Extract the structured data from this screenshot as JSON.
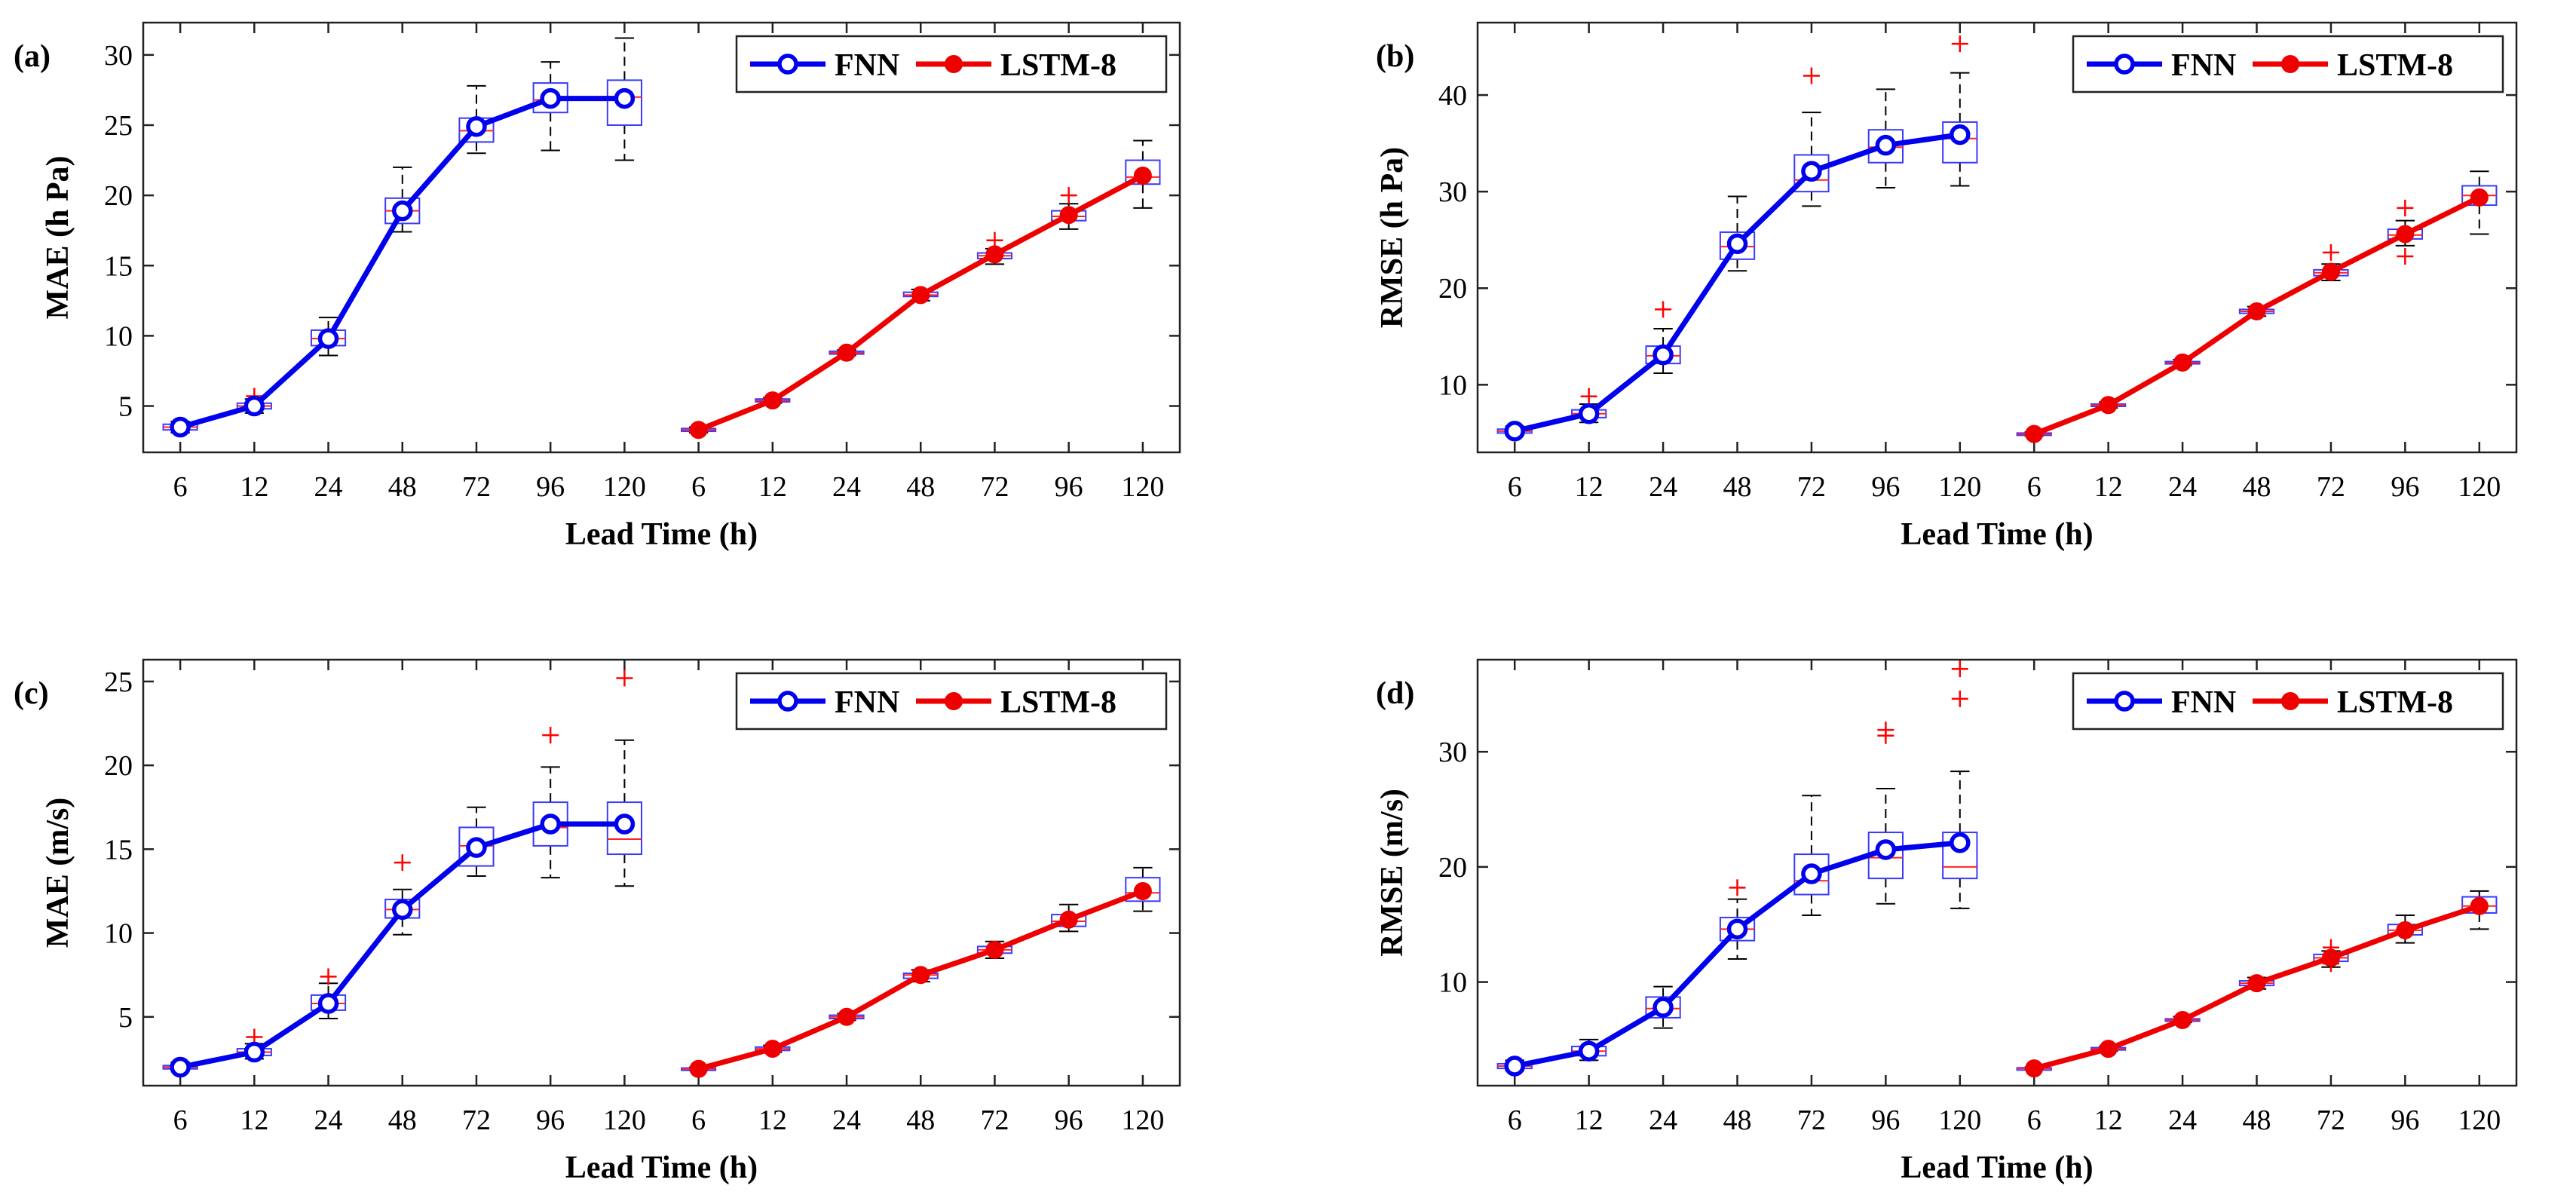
{
  "colors": {
    "fnn": "#0000ee",
    "lstm": "#ee0000",
    "box": "#3a3aff",
    "median": "#ff2222",
    "whisker": "#000000",
    "outlier": "#ff0000"
  },
  "chart_data": [
    {
      "type": "line+box",
      "panel": "(a)",
      "xlabel": "Lead Time (h)",
      "ylabel": "MAE (h Pa)",
      "ylim": [
        1.7,
        32.3
      ],
      "yticks": [
        5,
        10,
        15,
        20,
        25,
        30
      ],
      "categories": [
        "6",
        "12",
        "24",
        "48",
        "72",
        "96",
        "120",
        "6",
        "12",
        "24",
        "48",
        "72",
        "96",
        "120"
      ],
      "legend": [
        "FNN",
        "LSTM-8"
      ],
      "legend_position": "top-right",
      "series": [
        {
          "name": "FNN",
          "x": [
            1,
            2,
            3,
            4,
            5,
            6,
            7
          ],
          "values": [
            3.5,
            5.0,
            9.8,
            18.9,
            24.9,
            26.9,
            26.9
          ]
        },
        {
          "name": "LSTM-8",
          "x": [
            8,
            9,
            10,
            11,
            12,
            13,
            14
          ],
          "values": [
            3.3,
            5.4,
            8.8,
            12.9,
            15.8,
            18.6,
            21.4
          ]
        }
      ],
      "boxes": [
        {
          "x": 1,
          "q1": 3.3,
          "median": 3.5,
          "q3": 3.7,
          "low": 3.1,
          "high": 3.9,
          "outliers": []
        },
        {
          "x": 2,
          "q1": 4.8,
          "median": 5.0,
          "q3": 5.2,
          "low": 4.5,
          "high": 5.5,
          "outliers": [
            5.7
          ]
        },
        {
          "x": 3,
          "q1": 9.3,
          "median": 9.8,
          "q3": 10.4,
          "low": 8.6,
          "high": 11.3,
          "outliers": []
        },
        {
          "x": 4,
          "q1": 18.0,
          "median": 18.9,
          "q3": 19.8,
          "low": 17.4,
          "high": 22.0,
          "outliers": []
        },
        {
          "x": 5,
          "q1": 23.8,
          "median": 24.6,
          "q3": 25.5,
          "low": 23.0,
          "high": 27.8,
          "outliers": []
        },
        {
          "x": 6,
          "q1": 25.9,
          "median": 26.8,
          "q3": 28.0,
          "low": 23.2,
          "high": 29.5,
          "outliers": []
        },
        {
          "x": 7,
          "q1": 25.0,
          "median": 27.0,
          "q3": 28.2,
          "low": 22.5,
          "high": 31.2,
          "outliers": []
        },
        {
          "x": 8,
          "q1": 3.2,
          "median": 3.3,
          "q3": 3.4,
          "low": 3.1,
          "high": 3.5,
          "outliers": []
        },
        {
          "x": 9,
          "q1": 5.3,
          "median": 5.4,
          "q3": 5.5,
          "low": 5.2,
          "high": 5.6,
          "outliers": []
        },
        {
          "x": 10,
          "q1": 8.7,
          "median": 8.8,
          "q3": 8.9,
          "low": 8.6,
          "high": 9.0,
          "outliers": []
        },
        {
          "x": 11,
          "q1": 12.8,
          "median": 12.9,
          "q3": 13.1,
          "low": 12.5,
          "high": 13.3,
          "outliers": []
        },
        {
          "x": 12,
          "q1": 15.5,
          "median": 15.7,
          "q3": 15.9,
          "low": 15.1,
          "high": 16.2,
          "outliers": [
            16.8
          ]
        },
        {
          "x": 13,
          "q1": 18.2,
          "median": 18.5,
          "q3": 18.9,
          "low": 17.6,
          "high": 19.4,
          "outliers": [
            20.0
          ]
        },
        {
          "x": 14,
          "q1": 20.8,
          "median": 21.3,
          "q3": 22.5,
          "low": 19.1,
          "high": 23.9,
          "outliers": []
        }
      ]
    },
    {
      "type": "line+box",
      "panel": "(b)",
      "xlabel": "Lead Time (h)",
      "ylabel": "RMSE (h Pa)",
      "ylim": [
        3.0,
        47.5
      ],
      "yticks": [
        10,
        20,
        30,
        40
      ],
      "categories": [
        "6",
        "12",
        "24",
        "48",
        "72",
        "96",
        "120",
        "6",
        "12",
        "24",
        "48",
        "72",
        "96",
        "120"
      ],
      "legend": [
        "FNN",
        "LSTM-8"
      ],
      "legend_position": "top-right",
      "series": [
        {
          "name": "FNN",
          "x": [
            1,
            2,
            3,
            4,
            5,
            6,
            7
          ],
          "values": [
            5.2,
            7.0,
            13.1,
            24.6,
            32.1,
            34.8,
            35.9
          ]
        },
        {
          "name": "LSTM-8",
          "x": [
            8,
            9,
            10,
            11,
            12,
            13,
            14
          ],
          "values": [
            4.9,
            7.9,
            12.3,
            17.6,
            21.7,
            25.6,
            29.4
          ]
        }
      ],
      "boxes": [
        {
          "x": 1,
          "q1": 5.0,
          "median": 5.2,
          "q3": 5.4,
          "low": 4.8,
          "high": 5.7,
          "outliers": []
        },
        {
          "x": 2,
          "q1": 6.6,
          "median": 7.0,
          "q3": 7.4,
          "low": 6.1,
          "high": 8.0,
          "outliers": [
            8.8
          ]
        },
        {
          "x": 3,
          "q1": 12.2,
          "median": 13.0,
          "q3": 14.0,
          "low": 11.2,
          "high": 15.8,
          "outliers": [
            17.8
          ]
        },
        {
          "x": 4,
          "q1": 23.0,
          "median": 24.3,
          "q3": 25.8,
          "low": 21.8,
          "high": 29.5,
          "outliers": []
        },
        {
          "x": 5,
          "q1": 30.0,
          "median": 31.2,
          "q3": 33.8,
          "low": 28.5,
          "high": 38.2,
          "outliers": [
            42.0
          ]
        },
        {
          "x": 6,
          "q1": 33.0,
          "median": 34.6,
          "q3": 36.4,
          "low": 30.4,
          "high": 40.6,
          "outliers": []
        },
        {
          "x": 7,
          "q1": 33.0,
          "median": 35.5,
          "q3": 37.2,
          "low": 30.6,
          "high": 42.3,
          "outliers": [
            45.3
          ]
        },
        {
          "x": 8,
          "q1": 4.8,
          "median": 4.9,
          "q3": 5.0,
          "low": 4.7,
          "high": 5.1,
          "outliers": []
        },
        {
          "x": 9,
          "q1": 7.8,
          "median": 7.9,
          "q3": 8.0,
          "low": 7.6,
          "high": 8.2,
          "outliers": []
        },
        {
          "x": 10,
          "q1": 12.2,
          "median": 12.3,
          "q3": 12.4,
          "low": 12.0,
          "high": 12.6,
          "outliers": []
        },
        {
          "x": 11,
          "q1": 17.4,
          "median": 17.6,
          "q3": 17.8,
          "low": 17.1,
          "high": 18.1,
          "outliers": []
        },
        {
          "x": 12,
          "q1": 21.3,
          "median": 21.6,
          "q3": 21.9,
          "low": 20.8,
          "high": 22.5,
          "outliers": [
            23.7
          ]
        },
        {
          "x": 13,
          "q1": 25.1,
          "median": 25.5,
          "q3": 26.1,
          "low": 24.4,
          "high": 27.0,
          "outliers": [
            23.3,
            28.3
          ]
        },
        {
          "x": 14,
          "q1": 28.6,
          "median": 29.6,
          "q3": 30.6,
          "low": 25.6,
          "high": 32.1,
          "outliers": []
        }
      ]
    },
    {
      "type": "line+box",
      "panel": "(c)",
      "xlabel": "Lead Time (h)",
      "ylabel": "MAE (m/s)",
      "ylim": [
        0.9,
        26.3
      ],
      "yticks": [
        5,
        10,
        15,
        20,
        25
      ],
      "categories": [
        "6",
        "12",
        "24",
        "48",
        "72",
        "96",
        "120",
        "6",
        "12",
        "24",
        "48",
        "72",
        "96",
        "120"
      ],
      "legend": [
        "FNN",
        "LSTM-8"
      ],
      "legend_position": "top-right",
      "series": [
        {
          "name": "FNN",
          "x": [
            1,
            2,
            3,
            4,
            5,
            6,
            7
          ],
          "values": [
            2.0,
            2.9,
            5.8,
            11.4,
            15.1,
            16.5,
            16.5
          ]
        },
        {
          "name": "LSTM-8",
          "x": [
            8,
            9,
            10,
            11,
            12,
            13,
            14
          ],
          "values": [
            1.9,
            3.1,
            5.0,
            7.5,
            9.0,
            10.8,
            12.5
          ]
        }
      ],
      "boxes": [
        {
          "x": 1,
          "q1": 1.9,
          "median": 2.0,
          "q3": 2.1,
          "low": 1.8,
          "high": 2.3,
          "outliers": []
        },
        {
          "x": 2,
          "q1": 2.7,
          "median": 2.9,
          "q3": 3.1,
          "low": 2.5,
          "high": 3.4,
          "outliers": [
            3.8
          ]
        },
        {
          "x": 3,
          "q1": 5.4,
          "median": 5.8,
          "q3": 6.3,
          "low": 4.9,
          "high": 7.0,
          "outliers": [
            7.4
          ]
        },
        {
          "x": 4,
          "q1": 10.9,
          "median": 11.4,
          "q3": 12.0,
          "low": 9.9,
          "high": 12.6,
          "outliers": [
            14.2
          ]
        },
        {
          "x": 5,
          "q1": 14.0,
          "median": 15.2,
          "q3": 16.3,
          "low": 13.4,
          "high": 17.5,
          "outliers": []
        },
        {
          "x": 6,
          "q1": 15.2,
          "median": 16.3,
          "q3": 17.8,
          "low": 13.3,
          "high": 19.9,
          "outliers": [
            21.8
          ]
        },
        {
          "x": 7,
          "q1": 14.7,
          "median": 15.6,
          "q3": 17.8,
          "low": 12.8,
          "high": 21.5,
          "outliers": [
            25.2
          ]
        },
        {
          "x": 8,
          "q1": 1.85,
          "median": 1.9,
          "q3": 1.95,
          "low": 1.8,
          "high": 2.0,
          "outliers": []
        },
        {
          "x": 9,
          "q1": 3.0,
          "median": 3.1,
          "q3": 3.2,
          "low": 2.9,
          "high": 3.3,
          "outliers": []
        },
        {
          "x": 10,
          "q1": 4.9,
          "median": 5.0,
          "q3": 5.1,
          "low": 4.8,
          "high": 5.2,
          "outliers": []
        },
        {
          "x": 11,
          "q1": 7.3,
          "median": 7.5,
          "q3": 7.6,
          "low": 7.1,
          "high": 7.8,
          "outliers": []
        },
        {
          "x": 12,
          "q1": 8.8,
          "median": 9.0,
          "q3": 9.2,
          "low": 8.5,
          "high": 9.5,
          "outliers": []
        },
        {
          "x": 13,
          "q1": 10.4,
          "median": 10.7,
          "q3": 11.1,
          "low": 10.1,
          "high": 11.7,
          "outliers": []
        },
        {
          "x": 14,
          "q1": 11.9,
          "median": 12.4,
          "q3": 13.3,
          "low": 11.3,
          "high": 13.9,
          "outliers": []
        }
      ]
    },
    {
      "type": "line+box",
      "panel": "(d)",
      "xlabel": "Lead Time (h)",
      "ylabel": "RMSE (m/s)",
      "ylim": [
        1.0,
        38.0
      ],
      "yticks": [
        10,
        20,
        30
      ],
      "categories": [
        "6",
        "12",
        "24",
        "48",
        "72",
        "96",
        "120",
        "6",
        "12",
        "24",
        "48",
        "72",
        "96",
        "120"
      ],
      "legend": [
        "FNN",
        "LSTM-8"
      ],
      "legend_position": "top-right",
      "series": [
        {
          "name": "FNN",
          "x": [
            1,
            2,
            3,
            4,
            5,
            6,
            7
          ],
          "values": [
            2.7,
            4.0,
            7.8,
            14.6,
            19.4,
            21.5,
            22.1
          ]
        },
        {
          "name": "LSTM-8",
          "x": [
            8,
            9,
            10,
            11,
            12,
            13,
            14
          ],
          "values": [
            2.5,
            4.2,
            6.7,
            9.9,
            12.1,
            14.5,
            16.6
          ]
        }
      ],
      "boxes": [
        {
          "x": 1,
          "q1": 2.5,
          "median": 2.7,
          "q3": 2.9,
          "low": 2.3,
          "high": 3.2,
          "outliers": []
        },
        {
          "x": 2,
          "q1": 3.6,
          "median": 4.0,
          "q3": 4.4,
          "low": 3.2,
          "high": 5.0,
          "outliers": []
        },
        {
          "x": 3,
          "q1": 6.9,
          "median": 7.7,
          "q3": 8.7,
          "low": 6.0,
          "high": 9.6,
          "outliers": []
        },
        {
          "x": 4,
          "q1": 13.6,
          "median": 14.6,
          "q3": 15.6,
          "low": 12.0,
          "high": 17.2,
          "outliers": [
            18.2
          ]
        },
        {
          "x": 5,
          "q1": 17.6,
          "median": 18.8,
          "q3": 21.1,
          "low": 15.8,
          "high": 26.2,
          "outliers": []
        },
        {
          "x": 6,
          "q1": 19.0,
          "median": 20.8,
          "q3": 23.0,
          "low": 16.8,
          "high": 26.8,
          "outliers": [
            31.4,
            31.9
          ]
        },
        {
          "x": 7,
          "q1": 19.0,
          "median": 20.0,
          "q3": 23.0,
          "low": 16.4,
          "high": 28.3,
          "outliers": [
            34.6,
            37.2
          ]
        },
        {
          "x": 8,
          "q1": 2.45,
          "median": 2.5,
          "q3": 2.55,
          "low": 2.4,
          "high": 2.6,
          "outliers": []
        },
        {
          "x": 9,
          "q1": 4.1,
          "median": 4.2,
          "q3": 4.3,
          "low": 4.0,
          "high": 4.4,
          "outliers": []
        },
        {
          "x": 10,
          "q1": 6.6,
          "median": 6.7,
          "q3": 6.8,
          "low": 6.5,
          "high": 7.0,
          "outliers": []
        },
        {
          "x": 11,
          "q1": 9.7,
          "median": 9.9,
          "q3": 10.1,
          "low": 9.4,
          "high": 10.4,
          "outliers": []
        },
        {
          "x": 12,
          "q1": 11.8,
          "median": 12.1,
          "q3": 12.4,
          "low": 11.3,
          "high": 12.7,
          "outliers": [
            11.6,
            13.0
          ]
        },
        {
          "x": 13,
          "q1": 14.1,
          "median": 14.5,
          "q3": 15.0,
          "low": 13.4,
          "high": 15.8,
          "outliers": []
        },
        {
          "x": 14,
          "q1": 16.0,
          "median": 16.6,
          "q3": 17.4,
          "low": 14.6,
          "high": 17.9,
          "outliers": []
        }
      ]
    }
  ]
}
